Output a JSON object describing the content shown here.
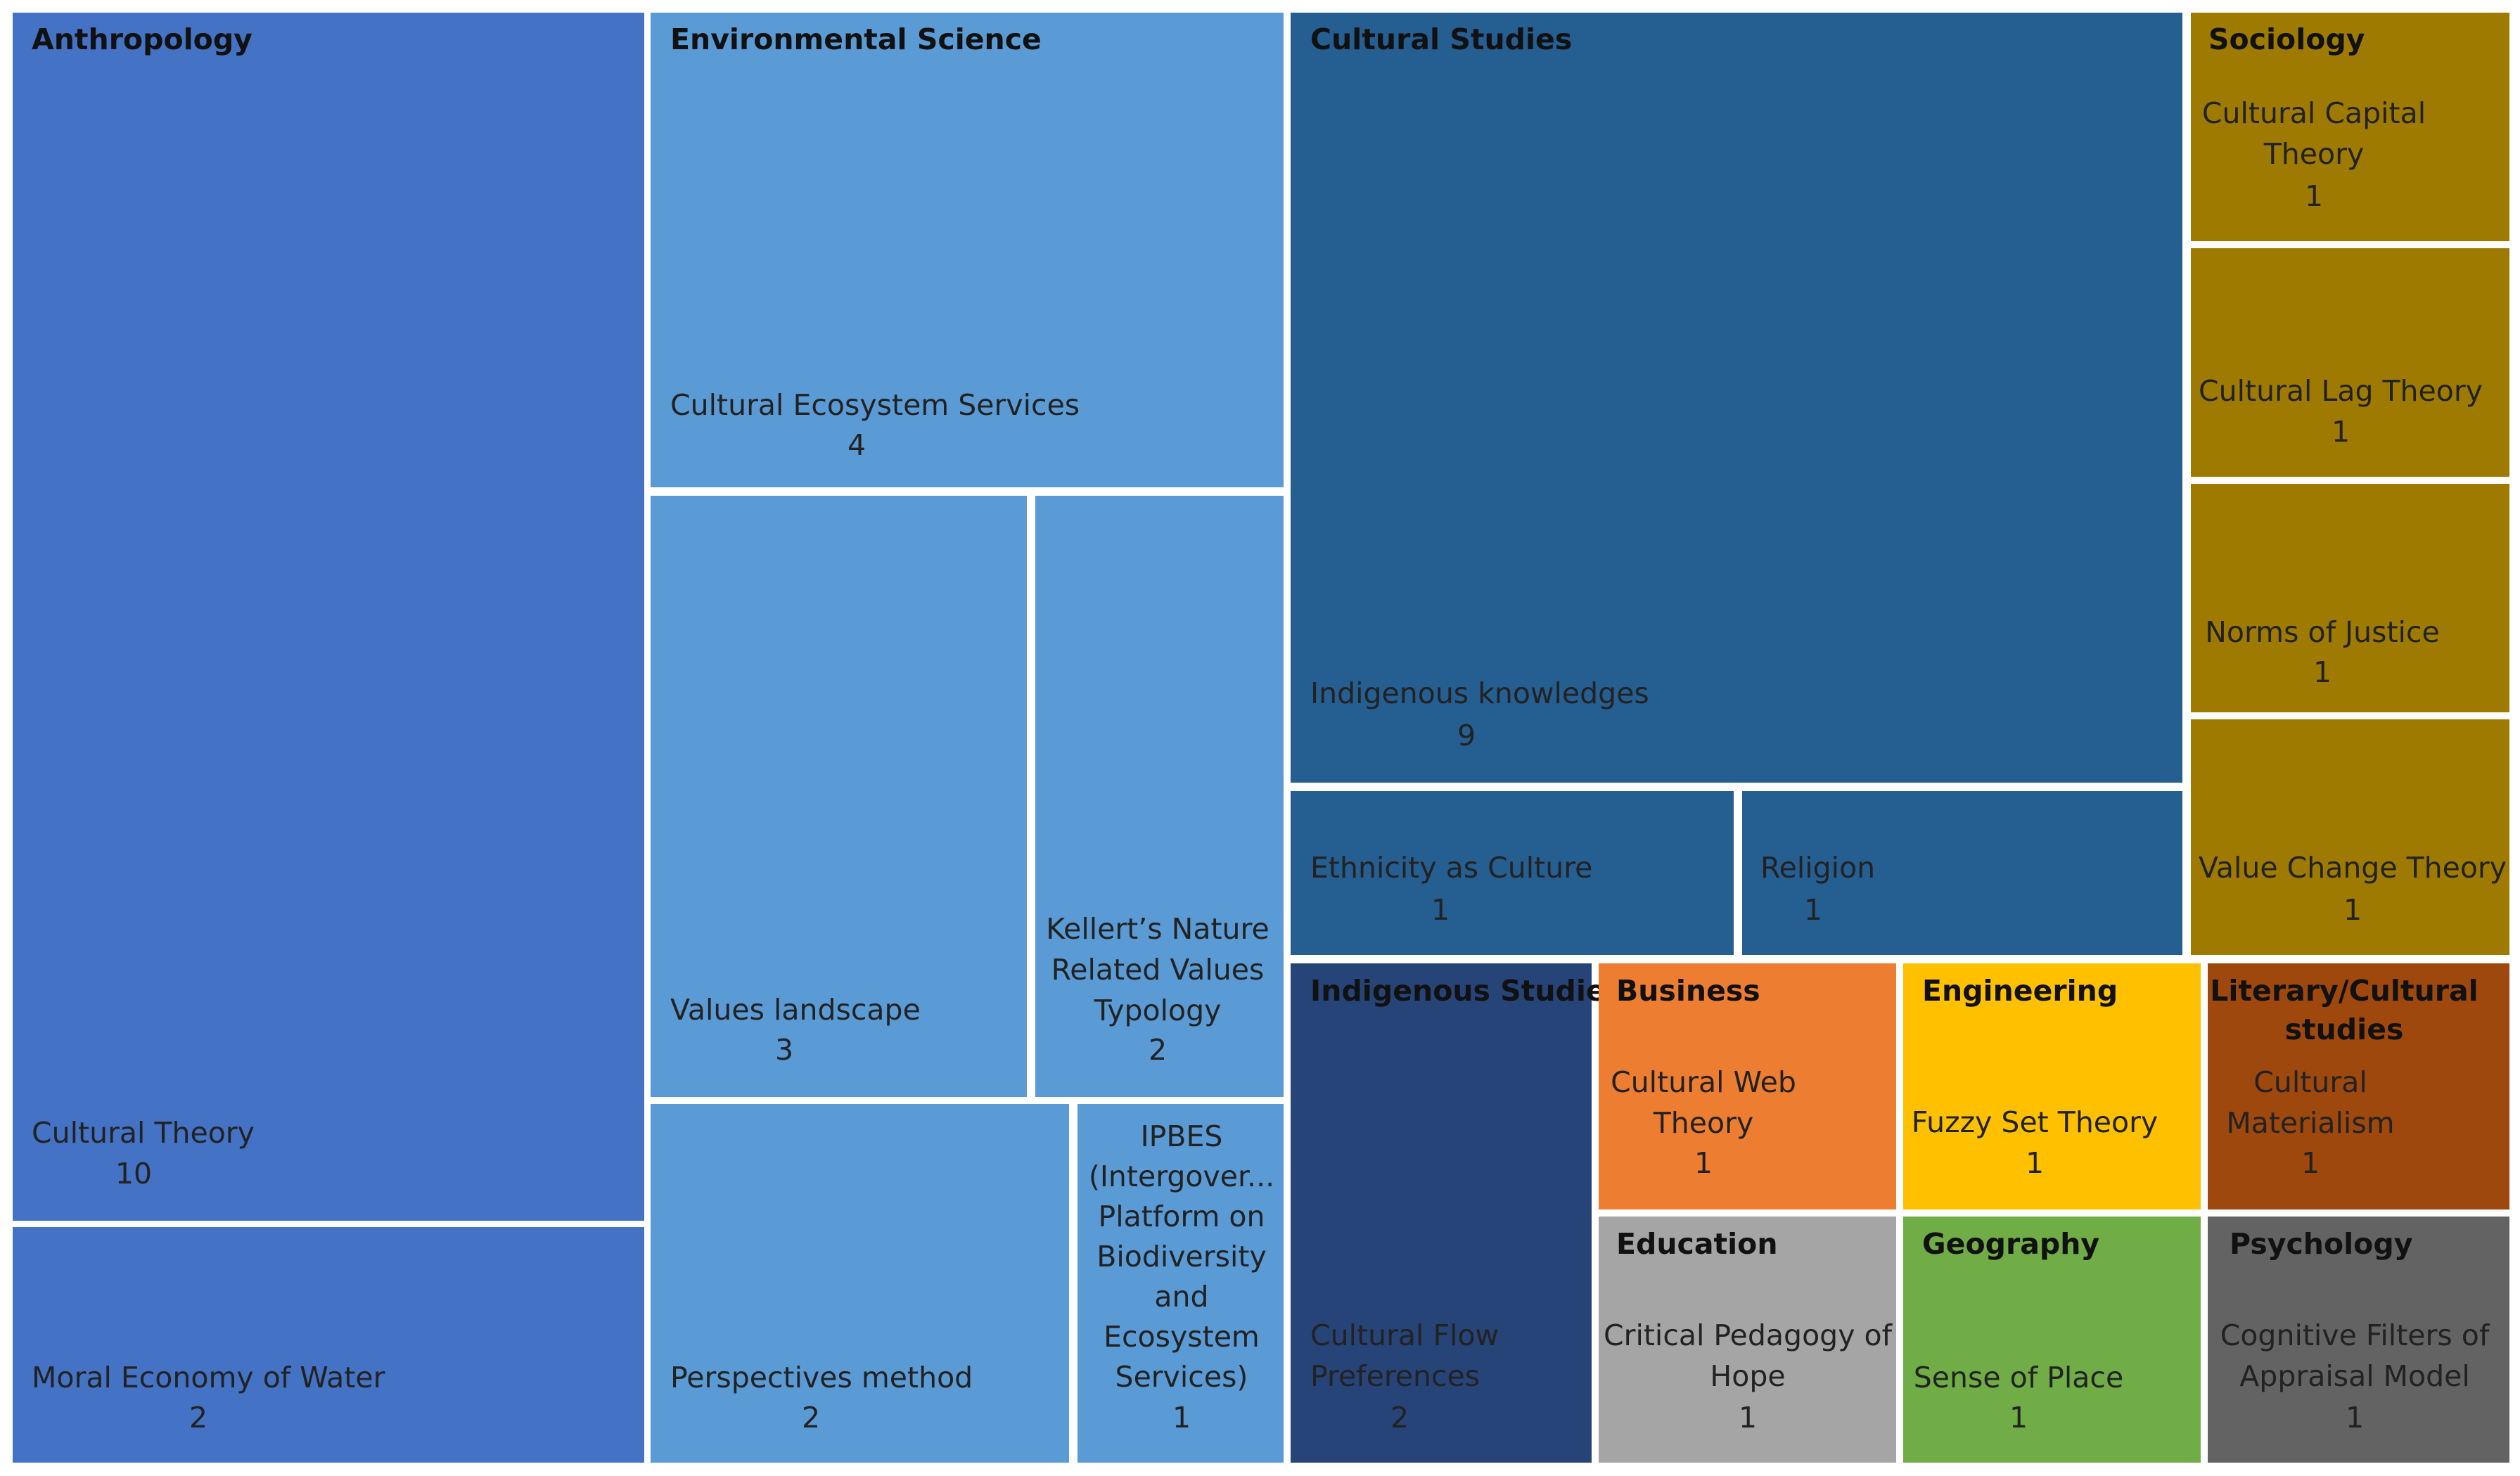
{
  "chart_data": {
    "type": "treemap",
    "title": "",
    "groups": [
      {
        "category": "Anthropology",
        "color": "#4472C4",
        "items": [
          {
            "label": "Cultural Theory",
            "value": 10
          },
          {
            "label": "Moral Economy of Water",
            "value": 2
          }
        ]
      },
      {
        "category": "Environmental Science",
        "color": "#5B9BD5",
        "items": [
          {
            "label": "Cultural Ecosystem Services",
            "value": 4
          },
          {
            "label": "Values landscape",
            "value": 3
          },
          {
            "label": "Kellert's Nature Related Values Typology",
            "value": 2
          },
          {
            "label": "Perspectives method",
            "value": 2
          },
          {
            "label": "IPBES (Intergover... Platform on Biodiversity and Ecosystem Services)",
            "value": 1
          }
        ]
      },
      {
        "category": "Cultural Studies",
        "color": "#255E91",
        "items": [
          {
            "label": "Indigenous knowledges",
            "value": 9
          },
          {
            "label": "Ethnicity as Culture",
            "value": 1
          },
          {
            "label": "Religion",
            "value": 1
          }
        ]
      },
      {
        "category": "Sociology",
        "color": "#9E7B00",
        "items": [
          {
            "label": "Cultural Capital Theory",
            "value": 1
          },
          {
            "label": "Cultural Lag Theory",
            "value": 1
          },
          {
            "label": "Norms of Justice",
            "value": 1
          },
          {
            "label": "Value Change Theory",
            "value": 1
          }
        ]
      },
      {
        "category": "Indigenous Studies",
        "color": "#264478",
        "items": [
          {
            "label": "Cultural Flow Preferences",
            "value": 2
          }
        ]
      },
      {
        "category": "Business",
        "color": "#ED7D31",
        "items": [
          {
            "label": "Cultural Web Theory",
            "value": 1
          }
        ]
      },
      {
        "category": "Engineering",
        "color": "#FFC000",
        "items": [
          {
            "label": "Fuzzy Set Theory",
            "value": 1
          }
        ]
      },
      {
        "category": "Literary/Cultural studies",
        "color": "#9E480E",
        "items": [
          {
            "label": "Cultural Materialism",
            "value": 1
          }
        ]
      },
      {
        "category": "Education",
        "color": "#A5A5A5",
        "items": [
          {
            "label": "Critical Pedagogy of Hope",
            "value": 1
          }
        ]
      },
      {
        "category": "Geography",
        "color": "#70AD47",
        "items": [
          {
            "label": "Sense of Place",
            "value": 1
          }
        ]
      },
      {
        "category": "Psychology",
        "color": "#636363",
        "items": [
          {
            "label": "Cognitive Filters of Appraisal Model",
            "value": 1
          }
        ]
      }
    ]
  }
}
